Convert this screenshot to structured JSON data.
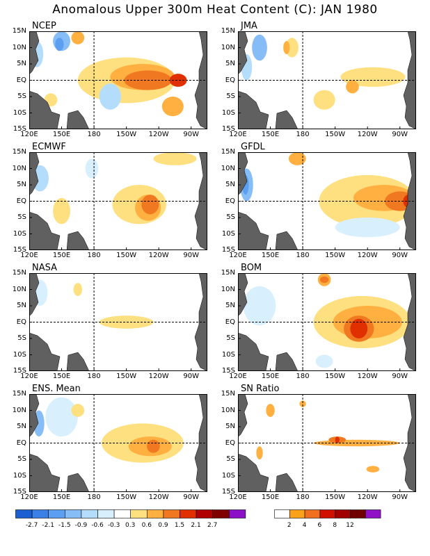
{
  "title": "Anomalous Upper 300m Heat Content (C): JAN 1980",
  "y_ticks": [
    "15N",
    "10N",
    "5N",
    "EQ",
    "5S",
    "10S",
    "15S"
  ],
  "x_ticks": [
    "120E",
    "150E",
    "180",
    "150W",
    "120W",
    "90W"
  ],
  "panels": [
    {
      "label": "NCEP"
    },
    {
      "label": "JMA"
    },
    {
      "label": "ECMWF"
    },
    {
      "label": "GFDL"
    },
    {
      "label": "NASA"
    },
    {
      "label": "BOM"
    },
    {
      "label": "ENS. Mean"
    },
    {
      "label": "SN Ratio"
    }
  ],
  "colorbar_anomaly": {
    "labels": [
      "-2.7",
      "-2.1",
      "-1.5",
      "-0.9",
      "-0.6",
      "-0.3",
      "0.3",
      "0.6",
      "0.9",
      "1.5",
      "2.1",
      "2.7"
    ],
    "colors": [
      "#1c5fd0",
      "#3a80e6",
      "#5c9ef0",
      "#86bdf6",
      "#b4dcfb",
      "#d8f0fe",
      "#ffffff",
      "#ffe080",
      "#ffb040",
      "#f07820",
      "#e03000",
      "#b00000",
      "#800000",
      "#8c10c8"
    ]
  },
  "colorbar_ratio": {
    "labels": [
      "2",
      "4",
      "6",
      "8",
      "12"
    ],
    "colors": [
      "#ffffff",
      "#f9a11b",
      "#f07020",
      "#d01000",
      "#a00000",
      "#700000",
      "#9010c8"
    ]
  },
  "colors": {
    "land": "#606060",
    "pos1": "#ffe080",
    "pos2": "#ffb040",
    "pos3": "#f07820",
    "pos4": "#e03000",
    "neg1": "#d8f0fe",
    "neg2": "#b4dcfb",
    "neg3": "#86bdf6",
    "neg4": "#5c9ef0",
    "neg5": "#3a80e6"
  }
}
